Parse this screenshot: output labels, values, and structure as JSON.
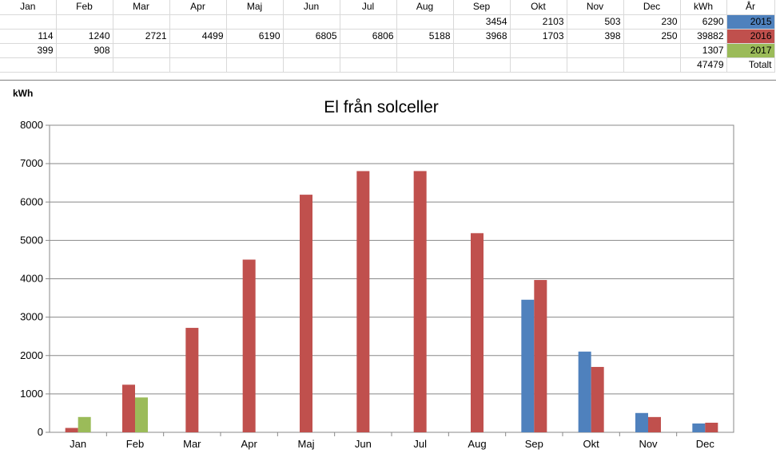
{
  "sheet": {
    "month_headers": [
      "Jan",
      "Feb",
      "Mar",
      "Apr",
      "Maj",
      "Jun",
      "Jul",
      "Aug",
      "Sep",
      "Okt",
      "Nov",
      "Dec"
    ],
    "kwh_header": "kWh",
    "year_header": "År",
    "rows": [
      {
        "year": "2015",
        "color": "#4f81bd",
        "kwh": "6290",
        "cells": [
          "",
          "",
          "",
          "",
          "",
          "",
          "",
          "",
          "3454",
          "2103",
          "503",
          "230"
        ]
      },
      {
        "year": "2016",
        "color": "#c0504d",
        "kwh": "39882",
        "cells": [
          "114",
          "1240",
          "2721",
          "4499",
          "6190",
          "6805",
          "6806",
          "5188",
          "3968",
          "1703",
          "398",
          "250"
        ]
      },
      {
        "year": "2017",
        "color": "#9bbb59",
        "kwh": "1307",
        "cells": [
          "399",
          "908",
          "",
          "",
          "",
          "",
          "",
          "",
          "",
          "",
          "",
          ""
        ]
      }
    ],
    "total_value": "47479",
    "total_label": "Totalt"
  },
  "chart_data": {
    "type": "bar",
    "title": "El från solceller",
    "ylabel": "kWh",
    "xlabel": "",
    "ylim": [
      0,
      8000
    ],
    "yticks": [
      0,
      1000,
      2000,
      3000,
      4000,
      5000,
      6000,
      7000,
      8000
    ],
    "grid": true,
    "categories": [
      "Jan",
      "Feb",
      "Mar",
      "Apr",
      "Maj",
      "Jun",
      "Jul",
      "Aug",
      "Sep",
      "Okt",
      "Nov",
      "Dec"
    ],
    "series": [
      {
        "color": "#4f81bd",
        "values": [
          null,
          null,
          null,
          null,
          null,
          null,
          null,
          null,
          3454,
          2103,
          503,
          230
        ]
      },
      {
        "color": "#c0504d",
        "values": [
          114,
          1240,
          2721,
          4499,
          6190,
          6805,
          6806,
          5188,
          3968,
          1703,
          398,
          250
        ]
      },
      {
        "color": "#9bbb59",
        "values": [
          399,
          908,
          null,
          null,
          null,
          null,
          null,
          null,
          null,
          null,
          null,
          null
        ]
      }
    ]
  }
}
